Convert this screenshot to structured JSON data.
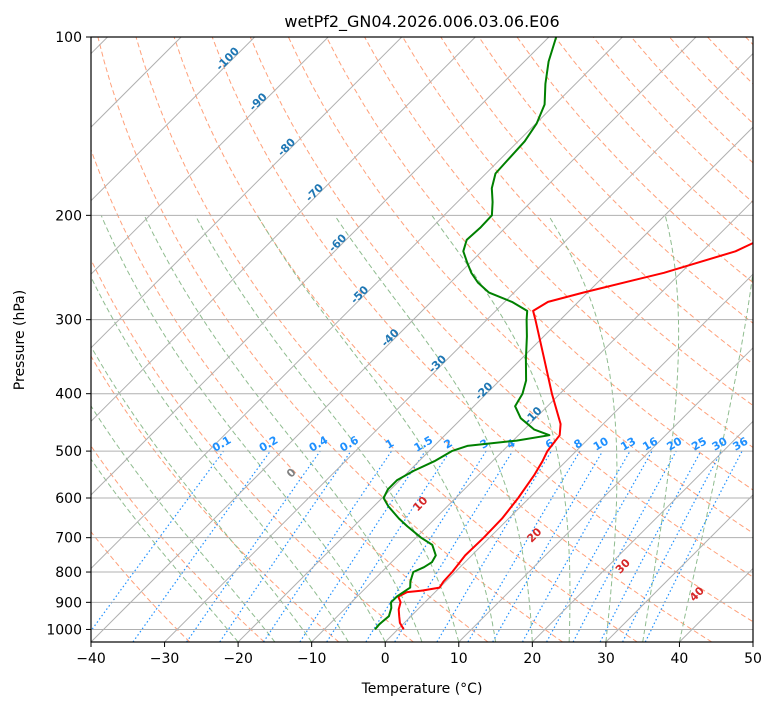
{
  "chart_data": {
    "type": "line",
    "title": "wetPf2_GN04.2026.006.03.06.E06",
    "xlabel": "Temperature (°C)",
    "ylabel": "Pressure (hPa)",
    "xlim": [
      -40,
      50
    ],
    "ylim": [
      1050,
      100
    ],
    "x_ticks": [
      -40,
      -30,
      -20,
      -10,
      0,
      10,
      20,
      30,
      40,
      50
    ],
    "y_ticks": [
      100,
      200,
      300,
      400,
      500,
      600,
      700,
      800,
      900,
      1000
    ],
    "skew_degrees": 45,
    "series": [
      {
        "name": "temperature",
        "color": "#ff0000",
        "points": [
          {
            "p": 1000,
            "t": 0.8
          },
          {
            "p": 975,
            "t": -0.6
          },
          {
            "p": 950,
            "t": -1.6
          },
          {
            "p": 925,
            "t": -2.6
          },
          {
            "p": 900,
            "t": -3.3
          },
          {
            "p": 880,
            "t": -4.4
          },
          {
            "p": 865,
            "t": -3.8
          },
          {
            "p": 860,
            "t": -2.0
          },
          {
            "p": 850,
            "t": 0.0
          },
          {
            "p": 830,
            "t": -0.3
          },
          {
            "p": 800,
            "t": -0.4
          },
          {
            "p": 780,
            "t": -0.6
          },
          {
            "p": 750,
            "t": -0.9
          },
          {
            "p": 700,
            "t": -0.8
          },
          {
            "p": 650,
            "t": -0.9
          },
          {
            "p": 600,
            "t": -1.5
          },
          {
            "p": 550,
            "t": -2.4
          },
          {
            "p": 520,
            "t": -3.2
          },
          {
            "p": 500,
            "t": -3.9
          },
          {
            "p": 470,
            "t": -4.4
          },
          {
            "p": 450,
            "t": -5.8
          },
          {
            "p": 400,
            "t": -11.1
          },
          {
            "p": 350,
            "t": -16.8
          },
          {
            "p": 300,
            "t": -23.4
          },
          {
            "p": 290,
            "t": -24.9
          },
          {
            "p": 280,
            "t": -24.1
          },
          {
            "p": 270,
            "t": -20.6
          },
          {
            "p": 250,
            "t": -12.3
          },
          {
            "p": 230,
            "t": -5.5
          },
          {
            "p": 200,
            "t": 0.0
          },
          {
            "p": 175,
            "t": 5.9
          },
          {
            "p": 150,
            "t": 9.5
          },
          {
            "p": 125,
            "t": 14.4
          },
          {
            "p": 100,
            "t": 19.9
          }
        ]
      },
      {
        "name": "dewpoint",
        "color": "#008000",
        "points": [
          {
            "p": 1000,
            "t": -3.1
          },
          {
            "p": 980,
            "t": -3.2
          },
          {
            "p": 950,
            "t": -3.0
          },
          {
            "p": 920,
            "t": -3.8
          },
          {
            "p": 900,
            "t": -4.6
          },
          {
            "p": 880,
            "t": -4.6
          },
          {
            "p": 850,
            "t": -4.0
          },
          {
            "p": 830,
            "t": -4.8
          },
          {
            "p": 800,
            "t": -5.7
          },
          {
            "p": 785,
            "t": -4.9
          },
          {
            "p": 770,
            "t": -4.5
          },
          {
            "p": 750,
            "t": -4.9
          },
          {
            "p": 720,
            "t": -6.8
          },
          {
            "p": 700,
            "t": -9.3
          },
          {
            "p": 670,
            "t": -12.7
          },
          {
            "p": 650,
            "t": -14.9
          },
          {
            "p": 620,
            "t": -18.0
          },
          {
            "p": 600,
            "t": -19.8
          },
          {
            "p": 580,
            "t": -20.4
          },
          {
            "p": 560,
            "t": -20.4
          },
          {
            "p": 540,
            "t": -19.4
          },
          {
            "p": 520,
            "t": -17.9
          },
          {
            "p": 500,
            "t": -16.9
          },
          {
            "p": 490,
            "t": -15.5
          },
          {
            "p": 480,
            "t": -9.5
          },
          {
            "p": 470,
            "t": -5.8
          },
          {
            "p": 460,
            "t": -8.6
          },
          {
            "p": 440,
            "t": -12.0
          },
          {
            "p": 420,
            "t": -14.4
          },
          {
            "p": 400,
            "t": -15.1
          },
          {
            "p": 380,
            "t": -16.4
          },
          {
            "p": 350,
            "t": -19.3
          },
          {
            "p": 320,
            "t": -22.3
          },
          {
            "p": 300,
            "t": -24.6
          },
          {
            "p": 290,
            "t": -25.7
          },
          {
            "p": 280,
            "t": -29.0
          },
          {
            "p": 270,
            "t": -33.4
          },
          {
            "p": 260,
            "t": -36.2
          },
          {
            "p": 250,
            "t": -38.5
          },
          {
            "p": 240,
            "t": -40.5
          },
          {
            "p": 230,
            "t": -42.5
          },
          {
            "p": 220,
            "t": -43.6
          },
          {
            "p": 210,
            "t": -43.4
          },
          {
            "p": 200,
            "t": -43.5
          },
          {
            "p": 190,
            "t": -45.2
          },
          {
            "p": 180,
            "t": -47.2
          },
          {
            "p": 170,
            "t": -48.7
          },
          {
            "p": 160,
            "t": -48.9
          },
          {
            "p": 150,
            "t": -49.1
          },
          {
            "p": 140,
            "t": -49.9
          },
          {
            "p": 130,
            "t": -51.4
          },
          {
            "p": 120,
            "t": -54.1
          },
          {
            "p": 110,
            "t": -56.7
          },
          {
            "p": 100,
            "t": -59.0
          }
        ]
      }
    ],
    "isotherm_labels": [
      "-100",
      "-90",
      "-80",
      "-70",
      "-60",
      "-50",
      "-40",
      "-30",
      "-20",
      "-10"
    ],
    "isotherm_label_temps": [
      -100,
      -90,
      -80,
      -70,
      -60,
      -50,
      -40,
      -30,
      -20,
      -10
    ],
    "mixing_ratio_labels": [
      "0.1",
      "0.2",
      "0.4",
      "0.6",
      "1",
      "1.5",
      "2",
      "3",
      "4",
      "6",
      "8",
      "10",
      "13",
      "16",
      "20",
      "25",
      "30",
      "36"
    ],
    "mixing_ratio_values": [
      0.1,
      0.2,
      0.4,
      0.6,
      1,
      1.5,
      2,
      3,
      4,
      6,
      8,
      10,
      13,
      16,
      20,
      25,
      30,
      36
    ],
    "moist_adiabat_labels": [
      "0",
      "10",
      "20",
      "30",
      "40"
    ],
    "moist_adiabat_values": [
      0,
      10,
      20,
      30,
      40
    ],
    "colors": {
      "isotherm_label": "#1f77b4",
      "mixing_ratio": "#1e90ff",
      "dry_adiabat": "#ffa07a",
      "moist_adiabat": "#8fbc8f",
      "moist_label": "#d62728",
      "zero_label": "#808080",
      "grid": "#b0b0b0"
    }
  }
}
